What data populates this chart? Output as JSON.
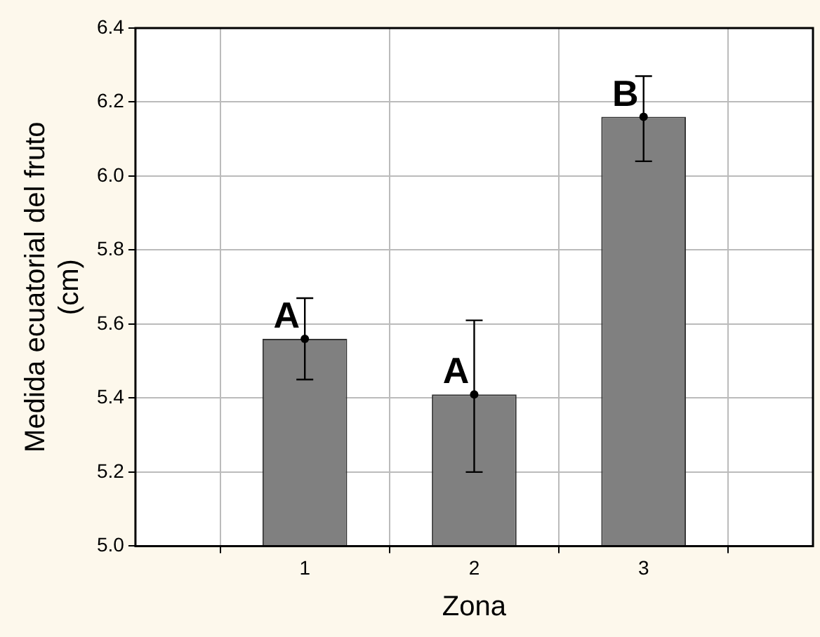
{
  "chart_data": {
    "type": "bar",
    "xlabel": "Zona",
    "ylabel": "Medida ecuatorial del fruto\n(cm)",
    "categories": [
      "1",
      "2",
      "3"
    ],
    "values": [
      5.56,
      5.41,
      6.16
    ],
    "errors": [
      [
        5.45,
        5.67
      ],
      [
        5.2,
        5.61
      ],
      [
        6.04,
        6.27
      ]
    ],
    "color": "#808080",
    "ylim": [
      5.0,
      6.4
    ],
    "yticks": [
      {
        "value": 5.0,
        "label": "5.0"
      },
      5.2,
      5.4,
      5.6,
      5.8,
      {
        "value": 6.0,
        "label": "6.0"
      },
      6.2,
      {
        "value": 6.4,
        "label": "6.4"
      }
    ],
    "grid": true,
    "annotations": [
      {
        "text": "A",
        "x": "1",
        "y": 5.56
      },
      {
        "text": "A",
        "x": "2",
        "y": 5.41
      },
      {
        "text": "B",
        "x": "3",
        "y": 6.16
      }
    ]
  }
}
